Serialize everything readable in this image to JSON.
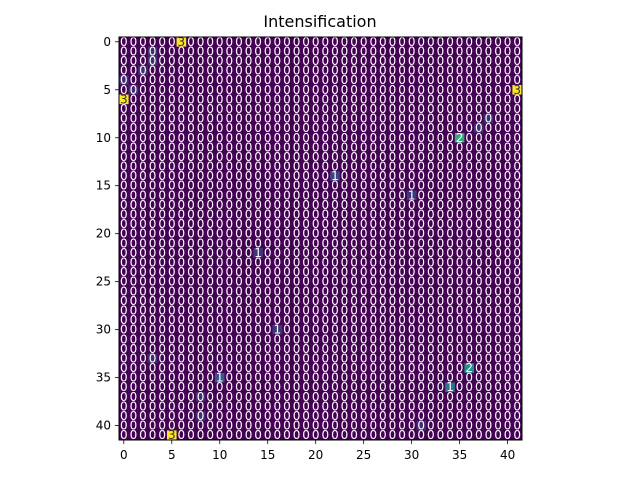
{
  "chart_data": {
    "type": "heatmap",
    "title": "Intensification",
    "xlabel": "",
    "ylabel": "",
    "rows": 42,
    "cols": 42,
    "colormap": "viridis",
    "value_range": [
      0,
      3
    ],
    "x_ticks": [
      "0",
      "5",
      "10",
      "15",
      "20",
      "25",
      "30",
      "35",
      "40"
    ],
    "y_ticks": [
      "0",
      "5",
      "10",
      "15",
      "20",
      "25",
      "30",
      "35",
      "40"
    ],
    "default_value": 0,
    "cells": [
      {
        "row": 0,
        "col": 6,
        "value": 3
      },
      {
        "row": 5,
        "col": 41,
        "value": 3
      },
      {
        "row": 6,
        "col": 0,
        "value": 3
      },
      {
        "row": 41,
        "col": 5,
        "value": 3
      },
      {
        "row": 10,
        "col": 35,
        "value": 1.8
      },
      {
        "row": 34,
        "col": 36,
        "value": 1.5
      },
      {
        "row": 36,
        "col": 34,
        "value": 1.2
      },
      {
        "row": 35,
        "col": 10,
        "value": 0.8
      },
      {
        "row": 14,
        "col": 22,
        "value": 0.6
      },
      {
        "row": 16,
        "col": 30,
        "value": 0.5
      },
      {
        "row": 22,
        "col": 14,
        "value": 0.5
      },
      {
        "row": 30,
        "col": 16,
        "value": 0.5
      },
      {
        "row": 1,
        "col": 3,
        "value": 0.4
      },
      {
        "row": 2,
        "col": 3,
        "value": 0.4
      },
      {
        "row": 3,
        "col": 2,
        "value": 0.4
      },
      {
        "row": 4,
        "col": 0,
        "value": 0.4
      },
      {
        "row": 5,
        "col": 1,
        "value": 0.4
      },
      {
        "row": 8,
        "col": 38,
        "value": 0.4
      },
      {
        "row": 9,
        "col": 37,
        "value": 0.4
      },
      {
        "row": 33,
        "col": 3,
        "value": 0.4
      },
      {
        "row": 37,
        "col": 8,
        "value": 0.4
      },
      {
        "row": 39,
        "col": 8,
        "value": 0.4
      },
      {
        "row": 40,
        "col": 31,
        "value": 0.4
      }
    ]
  }
}
